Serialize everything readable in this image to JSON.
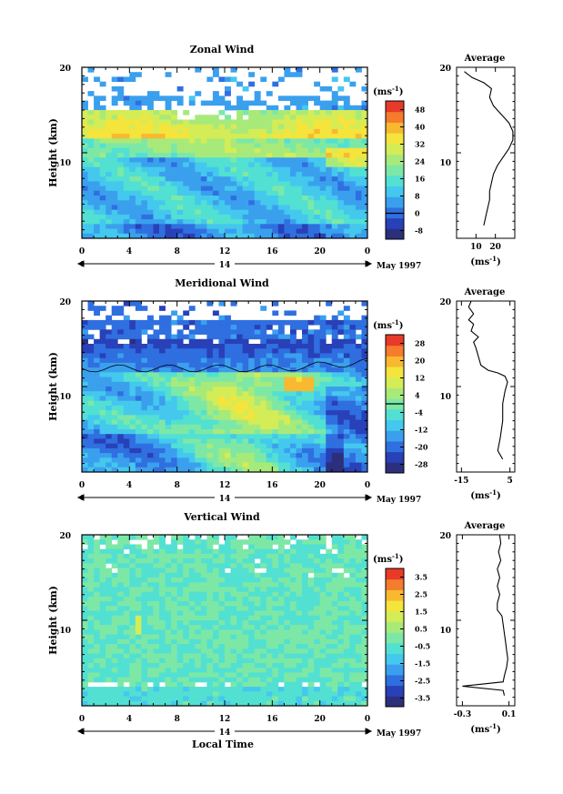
{
  "colors": {
    "scale": [
      "#2b2f7c",
      "#2840b8",
      "#2f6fe0",
      "#3aa0ee",
      "#44c8ee",
      "#52e0d2",
      "#7de8a6",
      "#a8ea7a",
      "#d4ec56",
      "#f4e43c",
      "#f8b830",
      "#f47c2c",
      "#e83a28"
    ],
    "sky": "#5fd2e8"
  },
  "chart_data": [
    {
      "type": "heatmap",
      "title": "Zonal Wind",
      "ylabel": "Height (km)",
      "yticks": [
        "20",
        "10"
      ],
      "xticks": [
        "0",
        "4",
        "8",
        "12",
        "16",
        "20",
        "0"
      ],
      "date_marker": "14",
      "date_label": "May 1997",
      "ylim": [
        0,
        20
      ],
      "xlim": [
        0,
        24
      ],
      "colorbar": {
        "unit_base": "(ms",
        "unit_exp": "-1",
        "unit_end": ")",
        "ticks": [
          "48",
          "40",
          "32",
          "24",
          "16",
          "8",
          "0",
          "-8"
        ],
        "range": [
          -12,
          52
        ]
      },
      "profile": {
        "title": "Average",
        "yticks": [
          "20",
          "10"
        ],
        "xticks": [
          "10",
          "20"
        ],
        "xlim": [
          0,
          30
        ],
        "xunit_base": "(ms",
        "xunit_exp": "-1",
        "xunit_end": ")",
        "points": [
          [
            14,
            1.5
          ],
          [
            15,
            2.5
          ],
          [
            16,
            3.5
          ],
          [
            17,
            4.5
          ],
          [
            17,
            5.5
          ],
          [
            18,
            6.5
          ],
          [
            19,
            7.5
          ],
          [
            21,
            8.5
          ],
          [
            24,
            9.5
          ],
          [
            27,
            10.5
          ],
          [
            29,
            11.5
          ],
          [
            29,
            12.5
          ],
          [
            27,
            13.5
          ],
          [
            23,
            14.5
          ],
          [
            19,
            15.5
          ],
          [
            17,
            16.5
          ],
          [
            18,
            17.5
          ],
          [
            14,
            18.2
          ],
          [
            8,
            18.8
          ],
          [
            4,
            19.5
          ]
        ]
      }
    },
    {
      "type": "heatmap",
      "title": "Meridional Wind",
      "ylabel": "Height (km)",
      "yticks": [
        "20",
        "10"
      ],
      "xticks": [
        "0",
        "4",
        "8",
        "12",
        "16",
        "20",
        "0"
      ],
      "date_marker": "14",
      "date_label": "May 1997",
      "ylim": [
        0,
        20
      ],
      "xlim": [
        0,
        24
      ],
      "colorbar": {
        "unit_base": "(ms",
        "unit_exp": "-1",
        "unit_end": ")",
        "ticks": [
          "28",
          "20",
          "12",
          "4",
          "-4",
          "-12",
          "-20",
          "-28"
        ],
        "range": [
          -32,
          32
        ]
      },
      "profile": {
        "title": "Average",
        "yticks": [
          "20",
          "10"
        ],
        "xticks": [
          "-15",
          "5"
        ],
        "xlim": [
          -17,
          7
        ],
        "xunit_base": "(ms",
        "xunit_exp": "-1",
        "xunit_end": ")",
        "points": [
          [
            2,
            1.5
          ],
          [
            0,
            2.5
          ],
          [
            1,
            4
          ],
          [
            2,
            6
          ],
          [
            2,
            8
          ],
          [
            3,
            9.5
          ],
          [
            4,
            10.5
          ],
          [
            3,
            11.2
          ],
          [
            0,
            11.6
          ],
          [
            -4,
            11.9
          ],
          [
            -7,
            12.5
          ],
          [
            -8,
            13.5
          ],
          [
            -9,
            14.5
          ],
          [
            -10,
            15.2
          ],
          [
            -8,
            15.8
          ],
          [
            -11,
            16.5
          ],
          [
            -10,
            17.3
          ],
          [
            -12,
            17.8
          ],
          [
            -10,
            18.5
          ],
          [
            -12,
            19.3
          ],
          [
            -11,
            20
          ]
        ]
      }
    },
    {
      "type": "heatmap",
      "title": "Vertical Wind",
      "ylabel": "Height (km)",
      "xlabel": "Local Time",
      "yticks": [
        "20",
        "10"
      ],
      "xticks": [
        "0",
        "4",
        "8",
        "12",
        "16",
        "20",
        "0"
      ],
      "date_marker": "14",
      "date_label": "May 1997",
      "ylim": [
        0,
        20
      ],
      "xlim": [
        0,
        24
      ],
      "colorbar": {
        "unit_base": "(ms",
        "unit_exp": "-1",
        "unit_end": ")",
        "ticks": [
          "3.5",
          "2.5",
          "1.5",
          "0.5",
          "-0.5",
          "-1.5",
          "-2.5",
          "-3.5"
        ],
        "range": [
          -4,
          4
        ]
      },
      "profile": {
        "title": "Average",
        "yticks": [
          "20",
          "10"
        ],
        "xticks": [
          "-0.3",
          "0.1"
        ],
        "xlim": [
          -0.35,
          0.15
        ],
        "xunit_base": "(ms",
        "xunit_exp": "-1",
        "xunit_end": ")",
        "points": [
          [
            0.06,
            1.2
          ],
          [
            0.05,
            1.8
          ],
          [
            -0.3,
            2.3
          ],
          [
            0.05,
            2.8
          ],
          [
            0.06,
            3.5
          ],
          [
            0.08,
            4.5
          ],
          [
            0.09,
            5.5
          ],
          [
            0.08,
            6.5
          ],
          [
            0.07,
            7.5
          ],
          [
            0.06,
            8.5
          ],
          [
            0.05,
            9.5
          ],
          [
            0.04,
            10.5
          ],
          [
            0.0,
            11.2
          ],
          [
            0.0,
            12
          ],
          [
            0.02,
            13
          ],
          [
            0.0,
            14
          ],
          [
            0.02,
            15
          ],
          [
            0.0,
            16
          ],
          [
            0.03,
            17
          ],
          [
            0.01,
            18
          ],
          [
            0.03,
            19
          ],
          [
            0.02,
            20
          ]
        ]
      }
    }
  ]
}
